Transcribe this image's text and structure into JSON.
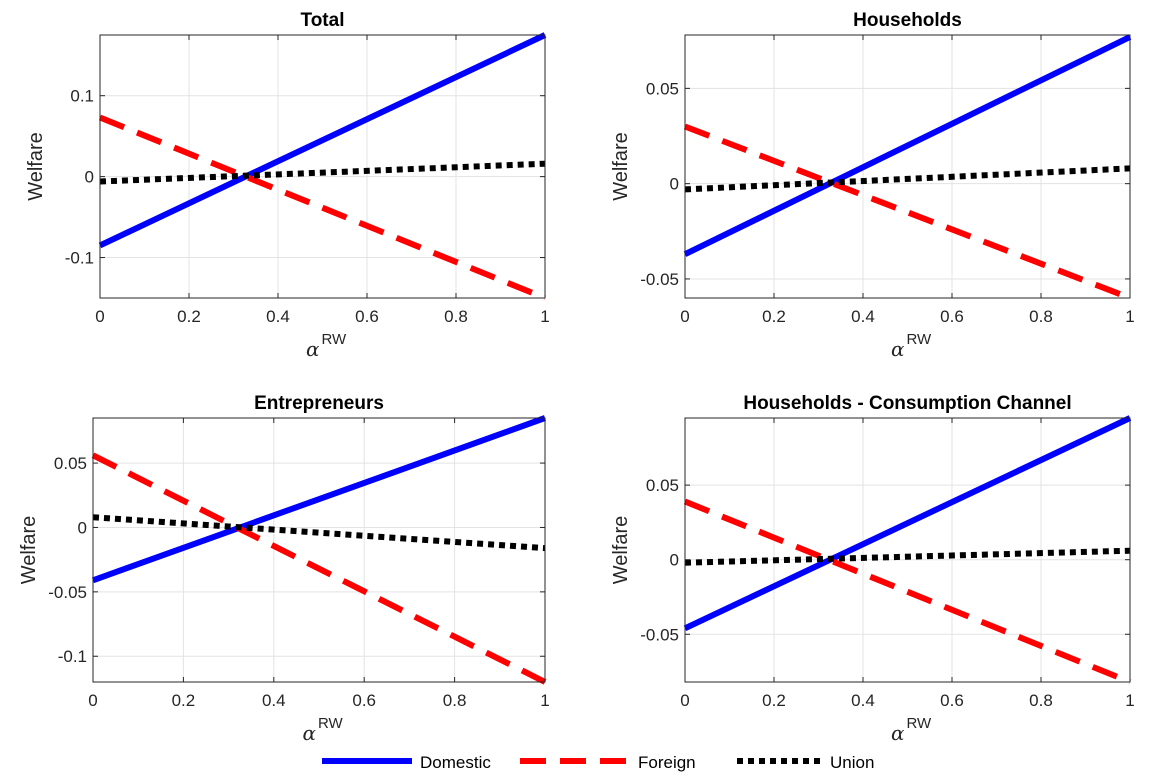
{
  "chart_data": [
    {
      "type": "line",
      "title": "Total",
      "xlabel": {
        "symbol": "α",
        "superscript": "RW"
      },
      "ylabel": "Welfare",
      "xlim": [
        0,
        1
      ],
      "ylim": [
        -0.15,
        0.175
      ],
      "xticks": [
        "0",
        "0.2",
        "0.4",
        "0.6",
        "0.8",
        "1"
      ],
      "yticks": [
        {
          "value": -0.1,
          "label": "-0.1"
        },
        {
          "value": 0,
          "label": "0"
        },
        {
          "value": 0.1,
          "label": "0.1"
        }
      ],
      "grid": true,
      "series": [
        {
          "name": "Domestic",
          "x": [
            0,
            1
          ],
          "y": [
            -0.085,
            0.175
          ]
        },
        {
          "name": "Foreign",
          "x": [
            0,
            1
          ],
          "y": [
            0.073,
            -0.15
          ]
        },
        {
          "name": "Union",
          "x": [
            0,
            1
          ],
          "y": [
            -0.006,
            0.016
          ]
        }
      ]
    },
    {
      "type": "line",
      "title": "Households",
      "xlabel": {
        "symbol": "α",
        "superscript": "RW"
      },
      "ylabel": "Welfare",
      "xlim": [
        0,
        1
      ],
      "ylim": [
        -0.06,
        0.078
      ],
      "xticks": [
        "0",
        "0.2",
        "0.4",
        "0.6",
        "0.8",
        "1"
      ],
      "yticks": [
        {
          "value": -0.05,
          "label": "-0.05"
        },
        {
          "value": 0,
          "label": "0"
        },
        {
          "value": 0.05,
          "label": "0.05"
        }
      ],
      "grid": true,
      "series": [
        {
          "name": "Domestic",
          "x": [
            0,
            1
          ],
          "y": [
            -0.037,
            0.077
          ]
        },
        {
          "name": "Foreign",
          "x": [
            0,
            1
          ],
          "y": [
            0.03,
            -0.06
          ]
        },
        {
          "name": "Union",
          "x": [
            0,
            1
          ],
          "y": [
            -0.003,
            0.008
          ]
        }
      ]
    },
    {
      "type": "line",
      "title": "Entrepreneurs",
      "xlabel": {
        "symbol": "α",
        "superscript": "RW"
      },
      "ylabel": "Welfare",
      "xlim": [
        0,
        1
      ],
      "ylim": [
        -0.12,
        0.085
      ],
      "xticks": [
        "0",
        "0.2",
        "0.4",
        "0.6",
        "0.8",
        "1"
      ],
      "yticks": [
        {
          "value": -0.1,
          "label": "-0.1"
        },
        {
          "value": -0.05,
          "label": "-0.05"
        },
        {
          "value": 0,
          "label": "0"
        },
        {
          "value": 0.05,
          "label": "0.05"
        }
      ],
      "grid": true,
      "series": [
        {
          "name": "Domestic",
          "x": [
            0,
            1
          ],
          "y": [
            -0.041,
            0.085
          ]
        },
        {
          "name": "Foreign",
          "x": [
            0,
            1
          ],
          "y": [
            0.056,
            -0.12
          ]
        },
        {
          "name": "Union",
          "x": [
            0,
            1
          ],
          "y": [
            0.008,
            -0.016
          ]
        }
      ]
    },
    {
      "type": "line",
      "title": "Households - Consumption Channel",
      "xlabel": {
        "symbol": "α",
        "superscript": "RW"
      },
      "ylabel": "Welfare",
      "xlim": [
        0,
        1
      ],
      "ylim": [
        -0.082,
        0.095
      ],
      "xticks": [
        "0",
        "0.2",
        "0.4",
        "0.6",
        "0.8",
        "1"
      ],
      "yticks": [
        {
          "value": -0.05,
          "label": "-0.05"
        },
        {
          "value": 0,
          "label": "0"
        },
        {
          "value": 0.05,
          "label": "0.05"
        }
      ],
      "grid": true,
      "series": [
        {
          "name": "Domestic",
          "x": [
            0,
            1
          ],
          "y": [
            -0.046,
            0.095
          ]
        },
        {
          "name": "Foreign",
          "x": [
            0,
            1
          ],
          "y": [
            0.039,
            -0.082
          ]
        },
        {
          "name": "Union",
          "x": [
            0,
            1
          ],
          "y": [
            -0.002,
            0.006
          ]
        }
      ]
    }
  ],
  "legend": {
    "placement": "bottom-center",
    "items": [
      {
        "label": "Domestic",
        "color": "#0000ff",
        "style": "solid"
      },
      {
        "label": "Foreign",
        "color": "#ff0000",
        "style": "dashed"
      },
      {
        "label": "Union",
        "color": "#000000",
        "style": "dotted"
      }
    ]
  }
}
